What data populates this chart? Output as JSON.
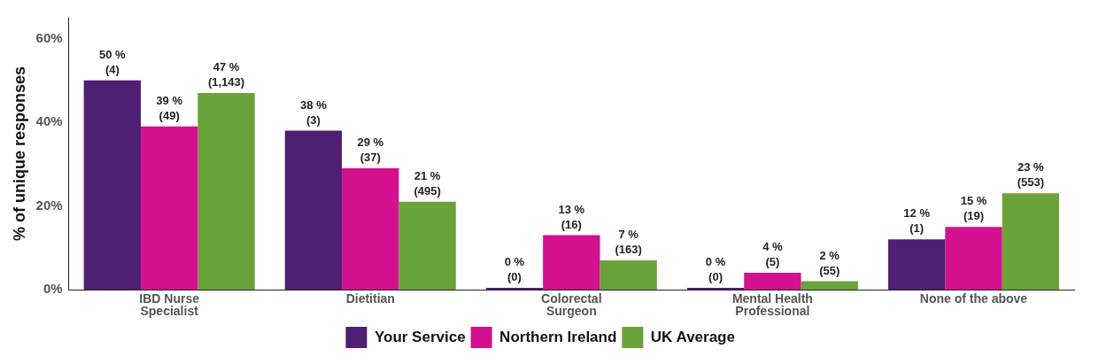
{
  "chart_data": {
    "type": "bar",
    "ylabel": "% of unique responses",
    "categories": [
      "IBD Nurse\nSpecialist",
      "Dietitian",
      "Colorectal\nSurgeon",
      "Mental Health\nProfessional",
      "None of the above"
    ],
    "series": [
      {
        "name": "Your Service",
        "color": "#4f1f73",
        "values": [
          50,
          38,
          0,
          0,
          12
        ],
        "value_labels": [
          "50 %\n(4)",
          "38 %\n(3)",
          "0 %\n(0)",
          "0 %\n(0)",
          "12 %\n(1)"
        ]
      },
      {
        "name": "Northern Ireland",
        "color": "#d3118f",
        "values": [
          39,
          29,
          13,
          4,
          15
        ],
        "value_labels": [
          "39 %\n(49)",
          "29 %\n(37)",
          "13 %\n(16)",
          "4 %\n(5)",
          "15 %\n(19)"
        ]
      },
      {
        "name": "UK Average",
        "color": "#6aa33a",
        "values": [
          47,
          21,
          7,
          2,
          23
        ],
        "value_labels": [
          "47 %\n(1,143)",
          "21 %\n(495)",
          "7 %\n(163)",
          "2 %\n(55)",
          "23 %\n(553)"
        ]
      }
    ],
    "ylim": [
      0,
      65
    ],
    "yticks": [
      {
        "value": 0,
        "label": "0%"
      },
      {
        "value": 20,
        "label": "20%"
      },
      {
        "value": 40,
        "label": "40%"
      },
      {
        "value": 60,
        "label": "60%"
      }
    ],
    "grid": false,
    "legend": "bottom"
  }
}
